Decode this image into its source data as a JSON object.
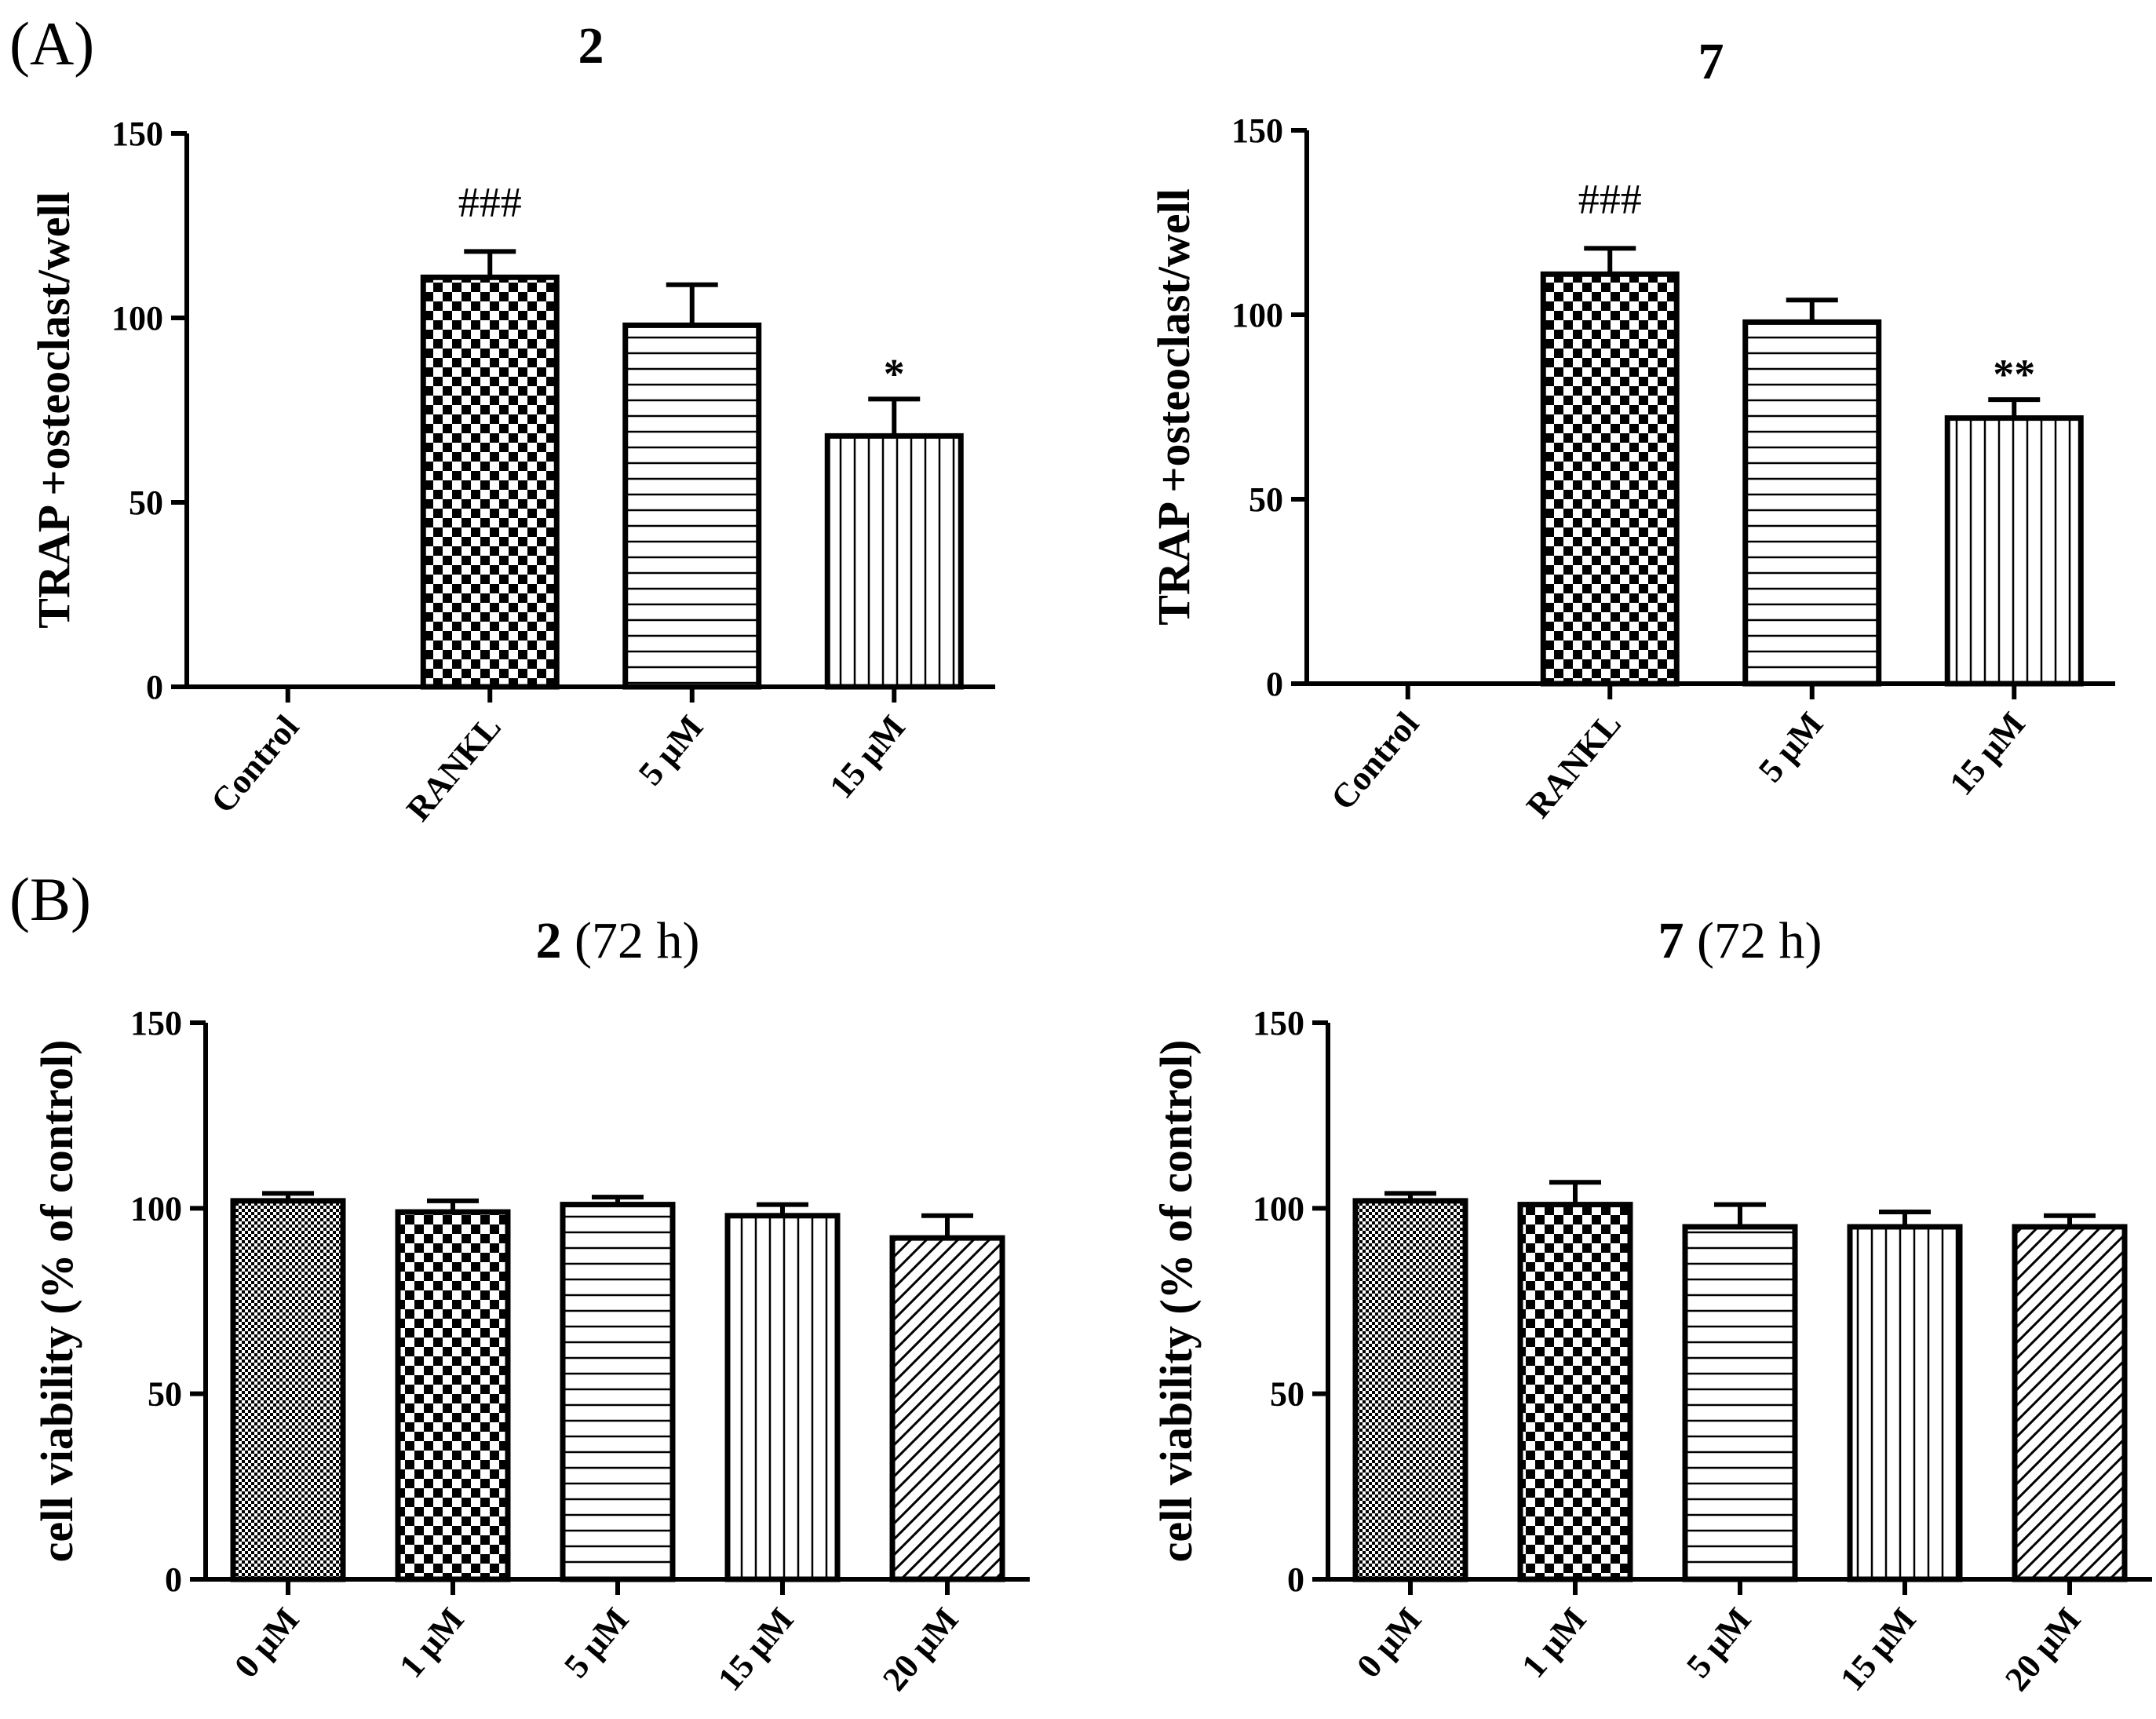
{
  "panels": {
    "a": "(A)",
    "b": "(B)"
  },
  "colors": {
    "ink": "#000000",
    "paper": "#ffffff"
  },
  "chart_data": [
    {
      "type": "bar",
      "title_bold": "2",
      "title_rest": "",
      "xlabel": "",
      "ylabel": "TRAP +osteoclast/well",
      "ylim": [
        0,
        150
      ],
      "yticks": [
        "0",
        "50",
        "100",
        "150"
      ],
      "categories": [
        "Control",
        "RANKL",
        "5 μM",
        "15 μM"
      ],
      "values": [
        0,
        111,
        98,
        68
      ],
      "errors": [
        0,
        7,
        11,
        10
      ],
      "patterns": [
        "none",
        "checker",
        "hlines",
        "vlines"
      ],
      "annotations": [
        "",
        "###",
        "",
        "*"
      ]
    },
    {
      "type": "bar",
      "title_bold": "7",
      "title_rest": "",
      "xlabel": "",
      "ylabel": "TRAP +osteoclast/well",
      "ylim": [
        0,
        150
      ],
      "yticks": [
        "0",
        "50",
        "100",
        "150"
      ],
      "categories": [
        "Control",
        "RANKL",
        "5 μM",
        "15 μM"
      ],
      "values": [
        0,
        111,
        98,
        72
      ],
      "errors": [
        0,
        7,
        6,
        5
      ],
      "patterns": [
        "none",
        "checker",
        "hlines",
        "vlines"
      ],
      "annotations": [
        "",
        "###",
        "",
        "**"
      ]
    },
    {
      "type": "bar",
      "title_bold": "2",
      "title_rest": " (72 h)",
      "xlabel": "",
      "ylabel": "cell viability (% of control)",
      "ylim": [
        0,
        150
      ],
      "yticks": [
        "0",
        "50",
        "100",
        "150"
      ],
      "categories": [
        "0 μM",
        "1 μM",
        "5 μM",
        "15 μM",
        "20 μM"
      ],
      "values": [
        102,
        99,
        101,
        98,
        92
      ],
      "errors": [
        2,
        3,
        2,
        3,
        6
      ],
      "patterns": [
        "fine",
        "checker",
        "hlines",
        "vlines",
        "diag"
      ],
      "annotations": [
        "",
        "",
        "",
        "",
        ""
      ]
    },
    {
      "type": "bar",
      "title_bold": "7",
      "title_rest": " (72 h)",
      "xlabel": "",
      "ylabel": "cell viability (% of control)",
      "ylim": [
        0,
        150
      ],
      "yticks": [
        "0",
        "50",
        "100",
        "150"
      ],
      "categories": [
        "0 μM",
        "1 μM",
        "5 μM",
        "15 μM",
        "20 μM"
      ],
      "values": [
        102,
        101,
        95,
        95,
        95
      ],
      "errors": [
        2,
        6,
        6,
        4,
        3
      ],
      "patterns": [
        "fine",
        "checker",
        "hlines",
        "vlines",
        "diag"
      ],
      "annotations": [
        "",
        "",
        "",
        "",
        ""
      ]
    }
  ]
}
